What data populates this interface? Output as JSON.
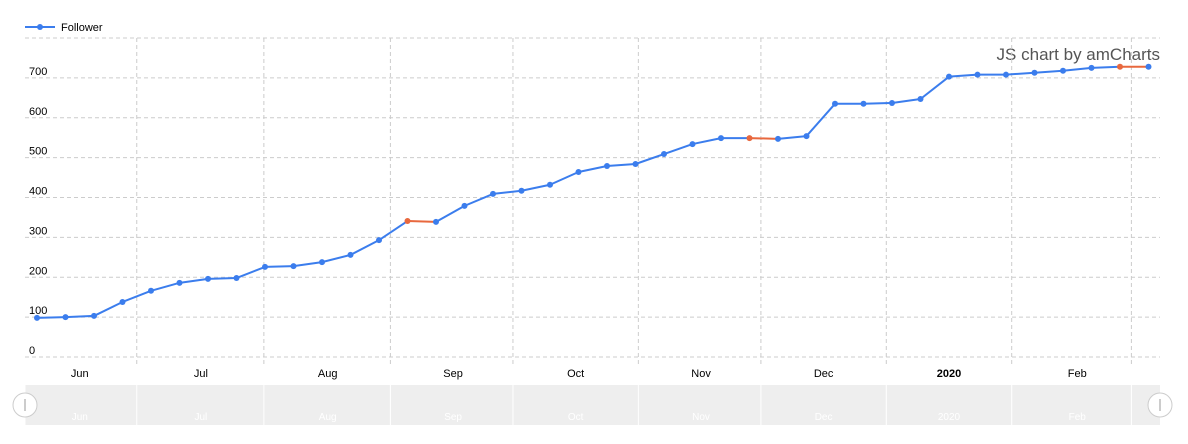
{
  "chart_data": {
    "type": "line",
    "legend": "Follower",
    "watermark": "JS chart by amCharts",
    "month_labels": [
      "Jun",
      "Jul",
      "Aug",
      "Sep",
      "Oct",
      "Nov",
      "Dec",
      "2020",
      "Feb"
    ],
    "series": [
      {
        "name": "Follower",
        "color": "#3b7ded",
        "values": [
          98,
          100,
          103,
          138,
          166,
          186,
          196,
          198,
          226,
          228,
          238,
          256,
          293,
          341,
          339,
          379,
          409,
          417,
          432,
          464,
          479,
          484,
          509,
          534,
          549,
          549,
          547,
          554,
          635,
          635,
          637,
          647,
          703,
          708,
          708,
          713,
          718,
          725,
          728,
          728
        ],
        "point_colors": [
          "#3b7ded",
          "#3b7ded",
          "#3b7ded",
          "#3b7ded",
          "#3b7ded",
          "#3b7ded",
          "#3b7ded",
          "#3b7ded",
          "#3b7ded",
          "#3b7ded",
          "#3b7ded",
          "#3b7ded",
          "#3b7ded",
          "#e8683e",
          "#3b7ded",
          "#3b7ded",
          "#3b7ded",
          "#3b7ded",
          "#3b7ded",
          "#3b7ded",
          "#3b7ded",
          "#3b7ded",
          "#3b7ded",
          "#3b7ded",
          "#3b7ded",
          "#e8683e",
          "#3b7ded",
          "#3b7ded",
          "#3b7ded",
          "#3b7ded",
          "#3b7ded",
          "#3b7ded",
          "#3b7ded",
          "#3b7ded",
          "#3b7ded",
          "#3b7ded",
          "#3b7ded",
          "#3b7ded",
          "#e8683e",
          "#3b7ded"
        ]
      }
    ],
    "ylim": [
      0,
      800
    ],
    "yticks": [
      0,
      100,
      200,
      300,
      400,
      500,
      600,
      700
    ],
    "grid": true
  }
}
